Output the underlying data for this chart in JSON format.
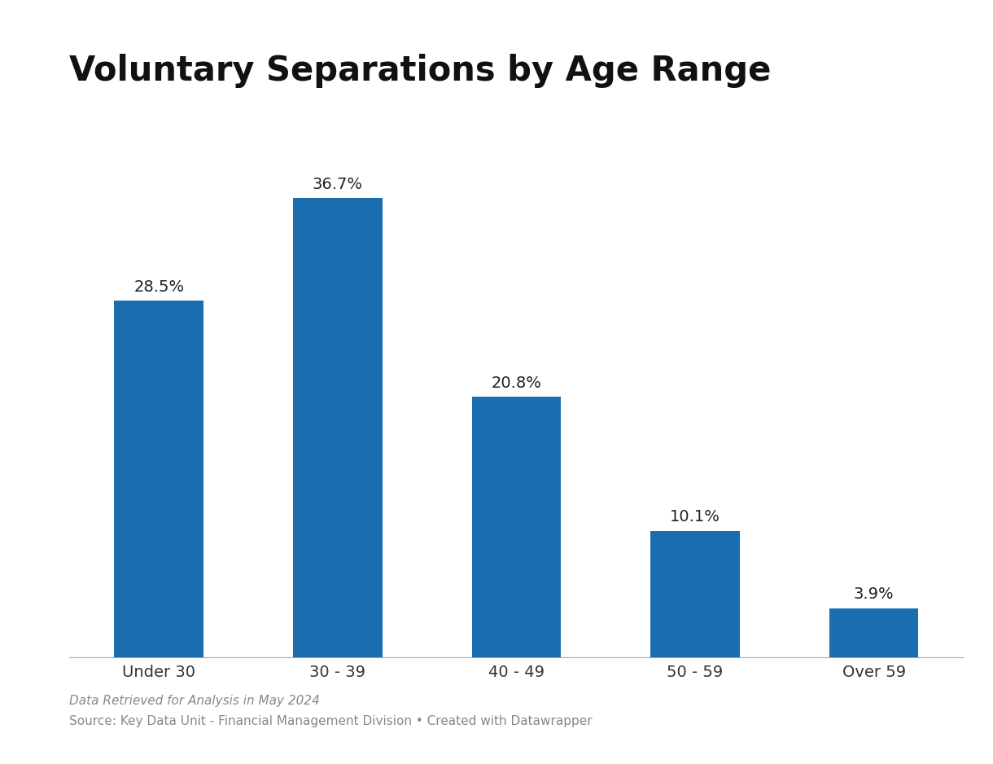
{
  "title": "Voluntary Separations by Age Range",
  "categories": [
    "Under 30",
    "30 - 39",
    "40 - 49",
    "50 - 59",
    "Over 59"
  ],
  "values": [
    28.5,
    36.7,
    20.8,
    10.1,
    3.9
  ],
  "bar_color": "#1A6DAF",
  "background_color": "#ffffff",
  "label_fontsize": 14,
  "title_fontsize": 30,
  "tick_fontsize": 14,
  "footnote_italic": "Data Retrieved for Analysis in May 2024",
  "footnote_normal": "Source: Key Data Unit - Financial Management Division • Created with Datawrapper",
  "ylim": [
    0,
    44
  ],
  "bar_width": 0.5
}
